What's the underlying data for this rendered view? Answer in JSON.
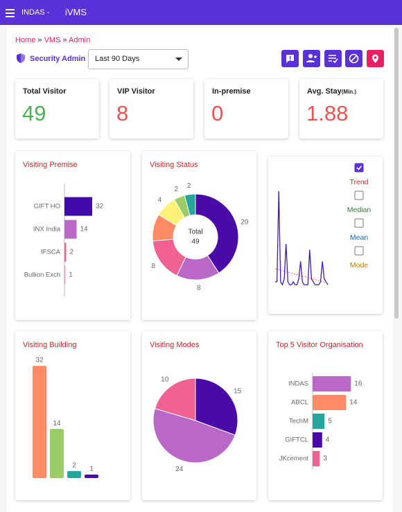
{
  "header": {
    "app_prefix": "INDAS -",
    "app_name": "iVMS"
  },
  "breadcrumb": [
    "Home",
    "VMS",
    "Admin"
  ],
  "role": "Security Admin",
  "period": "Last 90 Days",
  "stats": [
    {
      "label": "Total Visitor",
      "value": "49",
      "color": "#4caf50"
    },
    {
      "label": "VIP Visitor",
      "value": "8",
      "color": "#ef5350"
    },
    {
      "label": "In-premise",
      "value": "0",
      "color": "#ef5350"
    },
    {
      "label": "Avg. Stay",
      "unit": "(Min.)",
      "value": "1.88",
      "color": "#ef5350"
    }
  ],
  "chart_data": [
    {
      "type": "hbar",
      "title": "Visiting Premise",
      "categories": [
        "GIFT HO",
        "INX India",
        "IFSCA",
        "Bullion Exch"
      ],
      "values": [
        32,
        14,
        2,
        1
      ],
      "colors": [
        "#3f0aa8",
        "#ba68c8",
        "#f06292",
        "#f48fb1"
      ]
    },
    {
      "type": "donut",
      "title": "Visiting Status",
      "values": [
        20,
        8,
        8,
        5,
        4,
        2,
        2
      ],
      "value_labels": [
        "20",
        "8",
        "8",
        null,
        "4",
        "2",
        "2"
      ],
      "colors": [
        "#4a0aa8",
        "#ba68c8",
        "#f06292",
        "#ff8a65",
        "#fff176",
        "#9ccc65",
        "#26a69a"
      ],
      "center_label": "Total",
      "total": "49"
    },
    {
      "type": "line",
      "values": [
        1,
        1,
        32,
        1,
        0,
        2,
        14,
        1,
        0,
        0,
        1,
        0,
        0,
        2,
        8,
        1,
        0,
        0,
        0,
        12,
        2,
        1,
        0,
        0,
        0,
        1,
        8,
        2,
        1,
        0
      ],
      "color": "#3f1aa8",
      "trend_color": "#e53935",
      "options": [
        {
          "label": "Trend",
          "checked": true,
          "color": "#c62828"
        },
        {
          "label": "Median",
          "checked": false,
          "color": "#2e7d32"
        },
        {
          "label": "Mean",
          "checked": false,
          "color": "#1565c0"
        },
        {
          "label": "Mode",
          "checked": false,
          "color": "#c77800"
        }
      ]
    },
    {
      "type": "vbar",
      "title": "Visiting Building",
      "values": [
        32,
        14,
        2,
        1
      ],
      "colors": [
        "#ff8a65",
        "#9ccc65",
        "#26a69a",
        "#4a0aa8"
      ]
    },
    {
      "type": "pie",
      "title": "Visiting Modes",
      "values": [
        15,
        24,
        10
      ],
      "colors": [
        "#4a0aa8",
        "#ba68c8",
        "#f06292"
      ]
    },
    {
      "type": "hbar",
      "title": "Top 5 Visitor Organisation",
      "categories": [
        "INDAS",
        "ABCL",
        "TechM",
        "GIFTCL",
        "JKcement"
      ],
      "values": [
        16,
        14,
        5,
        4,
        3
      ],
      "colors": [
        "#ba68c8",
        "#ff8a65",
        "#26a69a",
        "#4a0aa8",
        "#f06292"
      ]
    }
  ]
}
